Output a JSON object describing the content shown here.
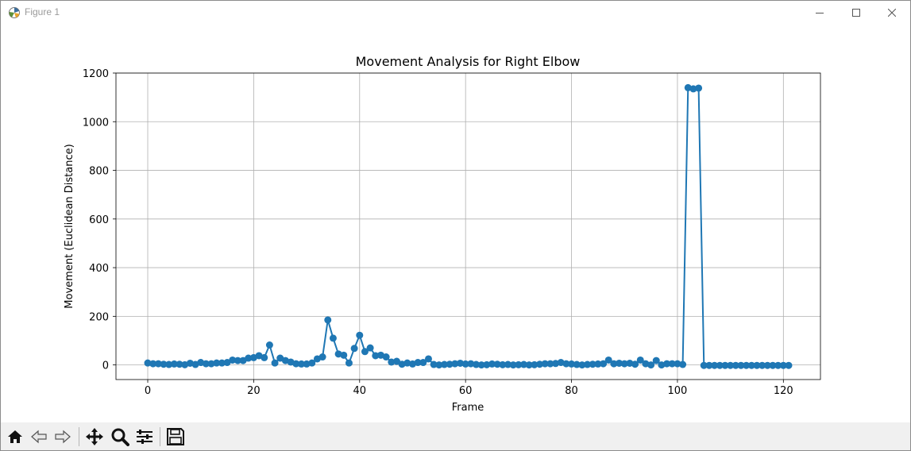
{
  "window": {
    "title": "Figure 1",
    "controls": {
      "minimize": "minimize-icon",
      "maximize": "maximize-icon",
      "close": "close-icon"
    }
  },
  "toolbar": {
    "buttons": [
      "home-icon",
      "back-icon",
      "forward-icon",
      "pan-icon",
      "zoom-icon",
      "configure-subplots-icon",
      "save-icon"
    ]
  },
  "chart_data": {
    "type": "line",
    "title": "Movement Analysis for Right Elbow",
    "xlabel": "Frame",
    "ylabel": "Movement (Euclidean Distance)",
    "xlim": [
      -6,
      127
    ],
    "ylim": [
      -60,
      1200
    ],
    "xticks": [
      0,
      20,
      40,
      60,
      80,
      100,
      120
    ],
    "yticks": [
      0,
      200,
      400,
      600,
      800,
      1000,
      1200
    ],
    "grid": true,
    "marker": "circle",
    "color": "#1f77b4",
    "series": [
      {
        "x": [
          0,
          1,
          2,
          3,
          4,
          5,
          6,
          7,
          8,
          9,
          10,
          11,
          12,
          13,
          14,
          15,
          16,
          17,
          18,
          19,
          20,
          21,
          22,
          23,
          24,
          25,
          26,
          27,
          28,
          29,
          30,
          31,
          32,
          33,
          34,
          35,
          36,
          37,
          38,
          39,
          40,
          41,
          42,
          43,
          44,
          45,
          46,
          47,
          48,
          49,
          50,
          51,
          52,
          53,
          54,
          55,
          56,
          57,
          58,
          59,
          60,
          61,
          62,
          63,
          64,
          65,
          66,
          67,
          68,
          69,
          70,
          71,
          72,
          73,
          74,
          75,
          76,
          77,
          78,
          79,
          80,
          81,
          82,
          83,
          84,
          85,
          86,
          87,
          88,
          89,
          90,
          91,
          92,
          93,
          94,
          95,
          96,
          97,
          98,
          99,
          100,
          101,
          102,
          103,
          104,
          105,
          106,
          107,
          108,
          109,
          110,
          111,
          112,
          113,
          114,
          115,
          116,
          117,
          118,
          119,
          120,
          121
        ],
        "values": [
          8,
          5,
          5,
          3,
          2,
          4,
          3,
          1,
          7,
          2,
          10,
          5,
          5,
          8,
          8,
          10,
          20,
          18,
          18,
          28,
          30,
          38,
          30,
          82,
          8,
          28,
          18,
          12,
          5,
          4,
          4,
          8,
          25,
          33,
          185,
          110,
          45,
          40,
          8,
          68,
          122,
          55,
          70,
          38,
          40,
          33,
          12,
          15,
          3,
          8,
          4,
          10,
          10,
          25,
          2,
          0,
          2,
          3,
          5,
          7,
          4,
          5,
          2,
          0,
          1,
          4,
          3,
          1,
          2,
          0,
          1,
          2,
          0,
          1,
          3,
          5,
          5,
          6,
          10,
          5,
          4,
          2,
          0,
          2,
          3,
          4,
          5,
          20,
          5,
          7,
          5,
          7,
          3,
          20,
          5,
          0,
          18,
          0,
          5,
          5,
          5,
          2,
          1140,
          1135,
          1138,
          -2,
          -2,
          -2,
          -2,
          -2,
          -2,
          -2,
          -2,
          -2,
          -2,
          -2,
          -2,
          -2,
          -2,
          -2,
          -2,
          -2
        ]
      }
    ]
  }
}
